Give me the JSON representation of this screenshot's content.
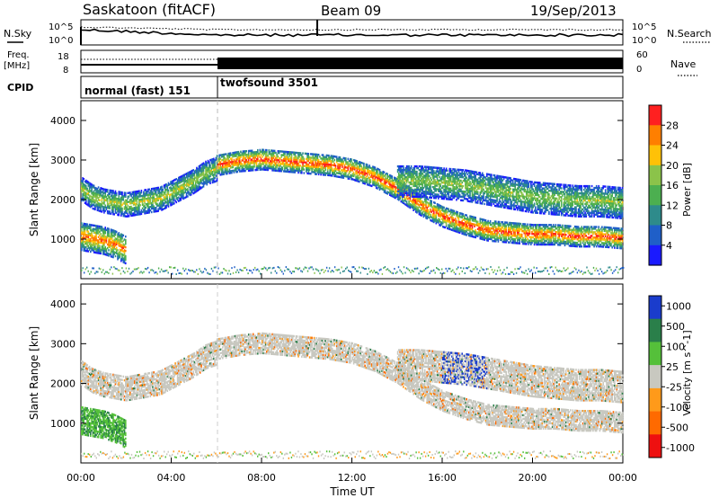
{
  "header": {
    "station": "Saskatoon (fitACF)",
    "beam": "Beam 09",
    "date": "19/Sep/2013"
  },
  "noise_panel": {
    "left_label": "N.Sky",
    "right_label": "N.Search",
    "left_ticks": [
      "10^5",
      "10^0"
    ],
    "right_ticks": [
      "10^5",
      "10^0"
    ]
  },
  "freq_panel": {
    "left_label_1": "Freq.",
    "left_label_2": "[MHz]",
    "left_ticks": [
      "18",
      "8"
    ],
    "right_label": "Nave",
    "right_ticks": [
      "60",
      "0"
    ]
  },
  "cpid_panel": {
    "label": "CPID",
    "modes": [
      {
        "name": "normal (fast) 151",
        "start": 0,
        "end": 6
      },
      {
        "name": "twofsound 3501",
        "start": 6,
        "end": 24
      }
    ]
  },
  "chart_data": [
    {
      "type": "heatmap",
      "title": "",
      "quantity": "Power",
      "xlabel": "Time UT",
      "ylabel": "Slant Range [km]",
      "xlim": [
        0,
        24
      ],
      "ylim": [
        0,
        4500
      ],
      "yticks": [
        "1000",
        "2000",
        "3000",
        "4000"
      ],
      "colorbar_label": "Power [dB]",
      "colorbar_ticks": [
        "4",
        "8",
        "12",
        "16",
        "20",
        "24",
        "28"
      ],
      "colorbar_range": [
        0,
        32
      ],
      "colors": [
        "#1a1aff",
        "#1f5fc8",
        "#2e8b8b",
        "#4caf50",
        "#8bc34a",
        "#ffc107",
        "#ff7f00",
        "#ff2020"
      ],
      "echo_bands": [
        {
          "x": [
            0,
            0.5,
            1,
            1.5,
            2,
            2.5,
            3,
            3.5,
            4,
            4.5,
            5,
            5.5,
            6
          ],
          "range_km": [
            2300,
            2100,
            2000,
            1950,
            1900,
            1950,
            2000,
            2050,
            2200,
            2350,
            2500,
            2700,
            2800
          ],
          "width_km": 300,
          "peak_db": 20
        },
        {
          "x": [
            0,
            0.5,
            1,
            1.5,
            2
          ],
          "range_km": [
            1100,
            1050,
            1000,
            900,
            750
          ],
          "width_km": 350,
          "peak_db": 28
        },
        {
          "x": [
            6,
            7,
            8,
            9,
            10,
            11,
            12,
            13,
            14,
            15,
            16,
            17,
            18,
            19,
            20,
            21,
            22,
            23,
            24
          ],
          "range_km": [
            2900,
            3000,
            3050,
            3000,
            2950,
            2900,
            2800,
            2600,
            2300,
            1900,
            1600,
            1400,
            1250,
            1200,
            1150,
            1150,
            1100,
            1100,
            1050
          ],
          "width_km": 260,
          "peak_db": 30
        },
        {
          "x": [
            14,
            15,
            16,
            17,
            18,
            19,
            20,
            21,
            22,
            23,
            24
          ],
          "range_km": [
            2500,
            2500,
            2450,
            2400,
            2300,
            2200,
            2100,
            2050,
            2000,
            2000,
            1950
          ],
          "width_km": 400,
          "peak_db": 18
        }
      ]
    },
    {
      "type": "heatmap",
      "title": "",
      "quantity": "Velocity",
      "xlabel": "Time UT",
      "ylabel": "Slant Range [km]",
      "xlim": [
        0,
        24
      ],
      "ylim": [
        0,
        4500
      ],
      "yticks": [
        "1000",
        "2000",
        "3000",
        "4000"
      ],
      "xticks": [
        "00:00",
        "04:00",
        "08:00",
        "12:00",
        "16:00",
        "20:00",
        "00:00"
      ],
      "colorbar_label": "Velocity [m s^-1]",
      "colorbar_ticks": [
        "1000",
        "500",
        "100",
        "25",
        "-25",
        "-100",
        "-500",
        "-1000"
      ],
      "colors": [
        "#1a3ccc",
        "#2a7f4a",
        "#55c03a",
        "#c8c8c0",
        "#ff9a1a",
        "#ff6a00",
        "#ee1010"
      ],
      "ground_scatter_color": "#c8c8c0"
    }
  ]
}
